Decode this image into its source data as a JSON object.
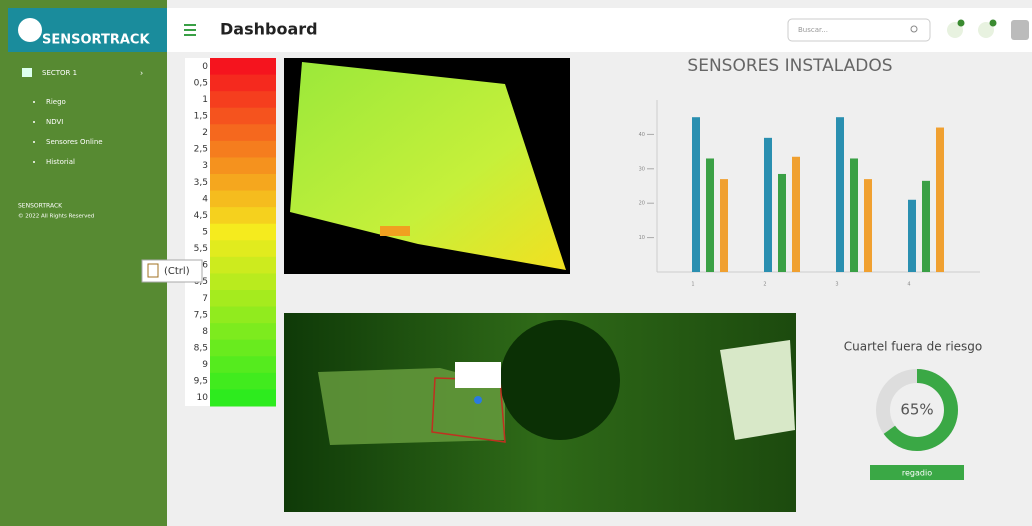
{
  "sidebar": {
    "brand": "SENSORTRACK",
    "menu": [
      "SECTOR 1",
      "Riego",
      "NDVI",
      "Sensores Online",
      "Historial"
    ],
    "footer_brand": "SENSORTRACK",
    "copyright": "© 2022 All Rights Reserved"
  },
  "header": {
    "title": "Dashboard",
    "search_placeholder": "Buscar..."
  },
  "scale": {
    "labels": [
      "0",
      "0,5",
      "1",
      "1,5",
      "2",
      "2,5",
      "3",
      "3,5",
      "4",
      "4,5",
      "5",
      "5,5",
      "6",
      "6,5",
      "7",
      "7,5",
      "8",
      "8,5",
      "9",
      "9,5",
      "10"
    ]
  },
  "paste_popup": "(Ctrl)",
  "chart_data": [
    {
      "type": "bar",
      "title": "SENSORES INSTALADOS",
      "categories": [
        "1",
        "2",
        "3",
        "4"
      ],
      "series": [
        {
          "color": "#2a8fb0",
          "values": [
            45,
            39,
            45,
            21
          ]
        },
        {
          "color": "#3aa045",
          "values": [
            33,
            28.5,
            33,
            26.5
          ]
        },
        {
          "color": "#f0a030",
          "values": [
            27,
            33.5,
            27,
            42
          ]
        }
      ],
      "ylim": [
        0,
        50
      ],
      "yticks": [
        10,
        20,
        30,
        40
      ]
    },
    {
      "type": "donut",
      "title": "Cuartel fuera de riesgo",
      "values": [
        65
      ],
      "value_labels": [
        "65%"
      ],
      "color": "#3aa845",
      "button": "regadio"
    }
  ]
}
